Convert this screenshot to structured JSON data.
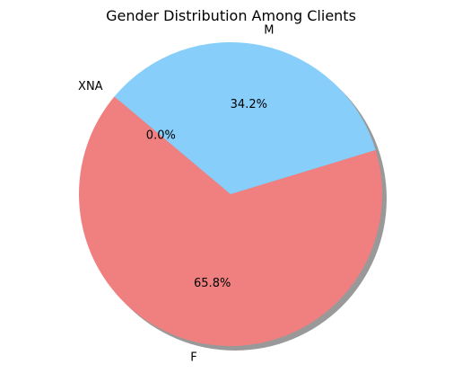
{
  "chart_data": {
    "type": "pie",
    "title": "Gender Distribution Among Clients",
    "start_angle_deg": 140,
    "counterclockwise": true,
    "shadow": true,
    "slices": [
      {
        "label": "F",
        "value": 65.8,
        "pct_label": "65.8%",
        "color": "#f08080"
      },
      {
        "label": "M",
        "value": 34.2,
        "pct_label": "34.2%",
        "color": "#87cefa"
      },
      {
        "label": "XNA",
        "value": 0.0,
        "pct_label": "0.0%",
        "color": "#9acd32"
      }
    ],
    "legend": false,
    "grid": false
  }
}
